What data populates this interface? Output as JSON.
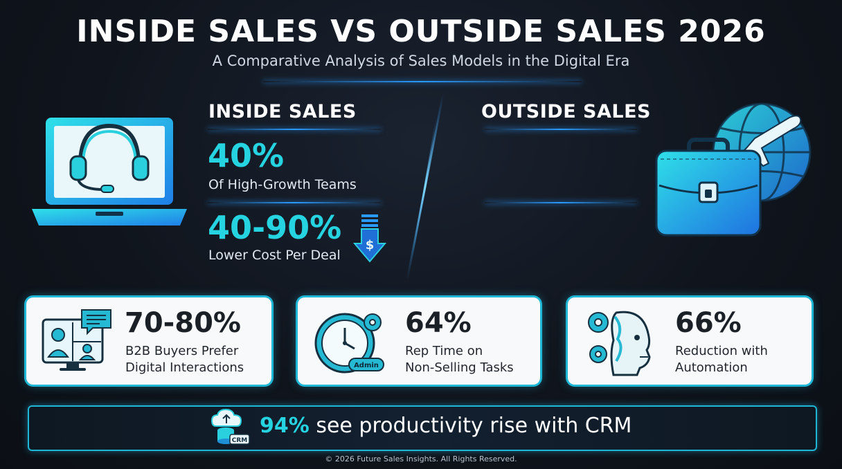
{
  "header": {
    "title": "INSIDE SALES VS OUTSIDE SALES 2026",
    "subtitle": "A Comparative Analysis of Sales Models in the Digital Era"
  },
  "inside_sales": {
    "heading": "INSIDE SALES",
    "stats": [
      {
        "value": "40%",
        "caption": "Of High-Growth Teams"
      },
      {
        "value": "40-90%",
        "caption": "Lower Cost Per Deal"
      }
    ]
  },
  "outside_sales": {
    "heading": "OUTSIDE SALES"
  },
  "cards": [
    {
      "value": "70-80%",
      "line1": "B2B Buyers Prefer",
      "line2": "Digital Interactions",
      "icon": "video-call-icon"
    },
    {
      "value": "64%",
      "line1": "Rep Time on",
      "line2": "Non-Selling Tasks",
      "icon": "clock-admin-icon",
      "badge": "Admin"
    },
    {
      "value": "66%",
      "line1": "Reduction with",
      "line2": "Automation",
      "icon": "robot-gears-icon"
    }
  ],
  "crm_banner": {
    "percent": "94%",
    "text": " see productivity rise with CRM",
    "icon_label": "CRM"
  },
  "footer": "© 2026 Future Sales Insights. All Rights Reserved.",
  "colors": {
    "accent_cyan": "#26d3e0",
    "glow_blue": "#2a9bff",
    "card_border": "#1fb7d6",
    "background": "#10151d"
  }
}
